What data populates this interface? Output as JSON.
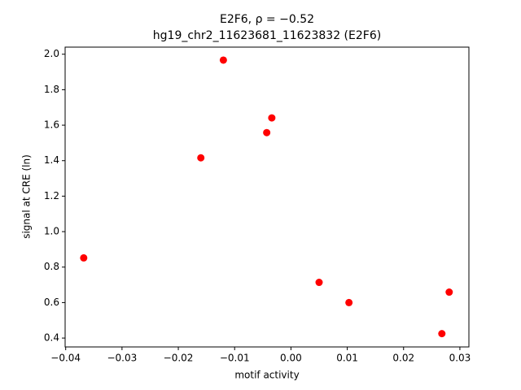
{
  "chart_data": {
    "type": "scatter",
    "title": "E2F6, ρ = −0.52",
    "subtitle": "hg19_chr2_11623681_11623832 (E2F6)",
    "x_label": "motif activity",
    "y_label": "signal at CRE (ln)",
    "color": "#ff0000",
    "x": [
      -0.0368,
      -0.016,
      -0.012,
      -0.0043,
      -0.0034,
      0.005,
      0.0103,
      0.0268,
      0.0281
    ],
    "values": [
      0.852,
      1.416,
      1.967,
      1.558,
      1.641,
      0.714,
      0.6,
      0.425,
      0.659
    ],
    "xlim": [
      -0.0401,
      0.0316
    ],
    "ylim": [
      0.35,
      2.04
    ],
    "xticks": [
      {
        "value": -0.04,
        "label": "−0.04"
      },
      {
        "value": -0.03,
        "label": "−0.03"
      },
      {
        "value": -0.02,
        "label": "−0.02"
      },
      {
        "value": -0.01,
        "label": "−0.01"
      },
      {
        "value": 0,
        "label": "0.00"
      },
      0.01,
      0.02,
      0.03
    ],
    "yticks": [
      0.4,
      0.6,
      0.8,
      {
        "value": 1,
        "label": "1.0"
      },
      1.2,
      1.4,
      1.6,
      1.8,
      {
        "value": 2,
        "label": "2.0"
      }
    ]
  }
}
